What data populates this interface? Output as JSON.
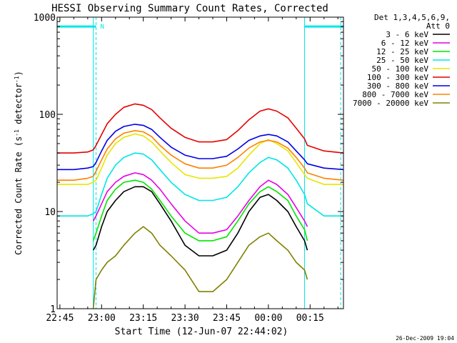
{
  "chart_data": {
    "type": "line",
    "title": "HESSI Observing Summary Count Rates, Corrected",
    "xlabel": "Start Time (12-Jun-07 22:44:02)",
    "ylabel_main": "Corrected Count Rate (s",
    "ylabel_sup1": "-1",
    "ylabel_mid": " detector",
    "ylabel_sup2": "-1",
    "ylabel_end": ")",
    "y_scale": "log",
    "ylim": [
      1,
      1000
    ],
    "xlim_minutes_after_22_45": [
      -1,
      102
    ],
    "x_ticks": [
      {
        "label": "22:45",
        "minutes": 0
      },
      {
        "label": "23:00",
        "minutes": 15
      },
      {
        "label": "23:15",
        "minutes": 30
      },
      {
        "label": "23:30",
        "minutes": 45
      },
      {
        "label": "23:45",
        "minutes": 60
      },
      {
        "label": "00:00",
        "minutes": 75
      },
      {
        "label": "00:15",
        "minutes": 90
      }
    ],
    "y_ticks": [
      {
        "label": "1",
        "value": 1
      },
      {
        "label": "10",
        "value": 10
      },
      {
        "label": "100",
        "value": 100
      },
      {
        "label": "1000",
        "value": 1000
      }
    ],
    "legend_header": [
      "Det 1,3,4,5,6,9,",
      "Att 0"
    ],
    "legend_position": "right",
    "series": [
      {
        "name": "3 - 6 keV",
        "color": "#000000",
        "x": [
          12,
          13,
          15,
          17,
          20,
          23,
          27,
          30,
          33,
          36,
          40,
          45,
          50,
          55,
          60,
          64,
          68,
          72,
          75,
          78,
          82,
          85,
          88,
          89
        ],
        "y": [
          4,
          4.5,
          7,
          10,
          13,
          16,
          18,
          18,
          16,
          12,
          8,
          4.5,
          3.5,
          3.5,
          4,
          6,
          10,
          14,
          15,
          13,
          10,
          7,
          5,
          4
        ]
      },
      {
        "name": "6 - 12 keV",
        "color": "#e600e6",
        "x": [
          12,
          13,
          15,
          17,
          20,
          23,
          27,
          30,
          33,
          36,
          40,
          45,
          50,
          55,
          60,
          64,
          68,
          72,
          75,
          78,
          82,
          85,
          88,
          89
        ],
        "y": [
          8,
          9,
          12,
          16,
          20,
          23,
          25,
          24,
          21,
          17,
          12,
          8,
          6,
          6,
          6.5,
          9,
          13,
          18,
          21,
          19,
          15,
          11,
          8,
          7
        ]
      },
      {
        "name": "12 - 25 keV",
        "color": "#00e600",
        "x": [
          12,
          13,
          15,
          17,
          20,
          23,
          27,
          30,
          33,
          36,
          40,
          45,
          50,
          55,
          60,
          64,
          68,
          72,
          75,
          78,
          82,
          85,
          88,
          89
        ],
        "y": [
          5,
          6,
          9,
          13,
          17,
          20,
          21,
          20,
          17,
          13,
          9,
          6,
          5,
          5,
          5.5,
          8,
          12,
          16,
          18,
          16,
          13,
          9,
          6.5,
          5
        ]
      },
      {
        "name": "25 - 50 keV",
        "color": "#00e6e6",
        "x": [
          -1,
          5,
          10,
          12,
          13,
          15,
          17,
          20,
          23,
          27,
          30,
          33,
          36,
          40,
          45,
          50,
          55,
          60,
          64,
          68,
          72,
          75,
          78,
          82,
          85,
          88,
          89,
          95,
          102
        ],
        "y": [
          9,
          9,
          9,
          9.5,
          10,
          15,
          22,
          30,
          36,
          40,
          39,
          34,
          27,
          20,
          15,
          13,
          13,
          14,
          18,
          25,
          32,
          36,
          34,
          28,
          21,
          15,
          12,
          9,
          9
        ]
      },
      {
        "name": "50 - 100 keV",
        "color": "#e6e600",
        "x": [
          -1,
          5,
          10,
          12,
          13,
          15,
          17,
          20,
          23,
          27,
          30,
          33,
          36,
          40,
          45,
          50,
          55,
          60,
          64,
          68,
          72,
          75,
          78,
          82,
          85,
          88,
          89,
          95,
          102
        ],
        "y": [
          19,
          19,
          19,
          20,
          21,
          28,
          38,
          50,
          58,
          63,
          60,
          52,
          42,
          32,
          24,
          22,
          22,
          23,
          28,
          38,
          50,
          55,
          50,
          42,
          32,
          24,
          22,
          19,
          19
        ]
      },
      {
        "name": "100 - 300 keV",
        "color": "#e60000",
        "x": [
          -1,
          5,
          10,
          12,
          13,
          15,
          17,
          20,
          23,
          27,
          30,
          33,
          36,
          40,
          45,
          50,
          55,
          60,
          64,
          68,
          72,
          75,
          78,
          82,
          85,
          88,
          89,
          95,
          102
        ],
        "y": [
          40,
          40,
          41,
          43,
          48,
          62,
          80,
          100,
          118,
          128,
          124,
          112,
          92,
          72,
          58,
          52,
          52,
          55,
          68,
          88,
          108,
          114,
          108,
          92,
          72,
          56,
          48,
          42,
          40
        ]
      },
      {
        "name": "300 - 800 keV",
        "color": "#0000e6",
        "x": [
          -1,
          5,
          10,
          12,
          13,
          15,
          17,
          20,
          23,
          27,
          30,
          33,
          36,
          40,
          45,
          50,
          55,
          60,
          64,
          68,
          72,
          75,
          78,
          82,
          85,
          88,
          89,
          95,
          102
        ],
        "y": [
          27,
          27,
          28,
          29,
          32,
          42,
          54,
          67,
          75,
          79,
          77,
          70,
          58,
          46,
          38,
          35,
          35,
          37,
          44,
          54,
          60,
          62,
          60,
          52,
          42,
          34,
          31,
          28,
          27
        ]
      },
      {
        "name": "800 - 7000 keV",
        "color": "#ff8000",
        "x": [
          -1,
          5,
          10,
          12,
          13,
          15,
          17,
          20,
          23,
          27,
          30,
          33,
          36,
          40,
          45,
          50,
          55,
          60,
          64,
          68,
          72,
          75,
          78,
          82,
          85,
          88,
          89,
          95,
          102
        ],
        "y": [
          21,
          21,
          22,
          23,
          26,
          34,
          44,
          56,
          64,
          68,
          66,
          59,
          48,
          38,
          31,
          28,
          28,
          30,
          36,
          45,
          52,
          54,
          52,
          45,
          36,
          28,
          25,
          22,
          21
        ]
      },
      {
        "name": "7000 - 20000 keV",
        "color": "#808000",
        "x": [
          12,
          13,
          15,
          17,
          20,
          23,
          27,
          30,
          33,
          36,
          40,
          45,
          50,
          55,
          60,
          64,
          68,
          72,
          75,
          78,
          82,
          85,
          88,
          89
        ],
        "y": [
          1,
          2,
          2.5,
          3,
          3.5,
          4.5,
          6,
          7,
          6,
          4.5,
          3.5,
          2.5,
          1.5,
          1.5,
          2,
          3,
          4.5,
          5.5,
          6,
          5,
          4,
          3,
          2.5,
          2
        ]
      }
    ],
    "annotations": {
      "flag_label": "N",
      "flag_level": 800,
      "flag_segments_minutes": [
        [
          -1,
          13
        ],
        [
          88,
          102
        ]
      ],
      "solid_vlines_minutes": [
        12,
        88
      ],
      "dashed_vlines_minutes": [
        13,
        101
      ]
    },
    "grid": false
  },
  "footer_timestamp": "26-Dec-2009 19:04"
}
